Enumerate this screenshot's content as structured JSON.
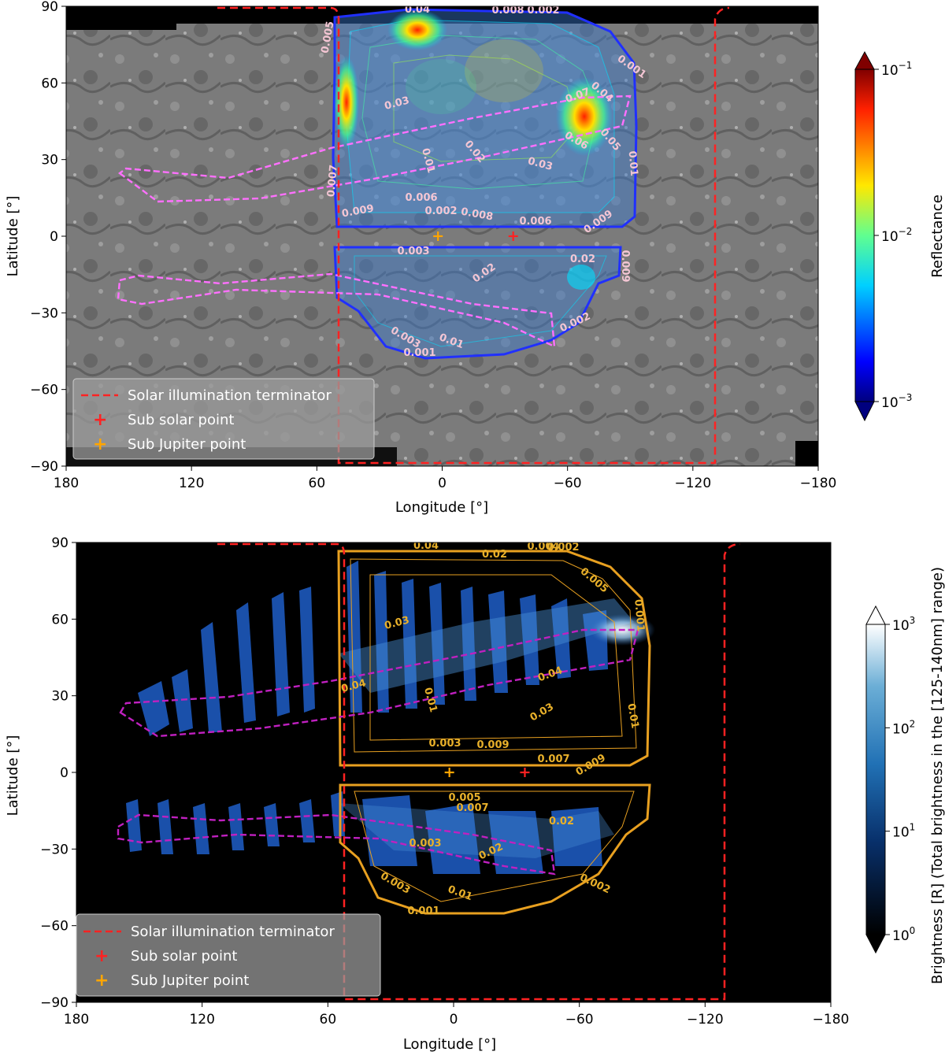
{
  "chart_data": [
    {
      "type": "heatmap",
      "panel": "top",
      "xlabel": "Longitude [°]",
      "ylabel": "Latitude [°]",
      "xlim": [
        180,
        -180
      ],
      "ylim": [
        -90,
        90
      ],
      "xticks": [
        "180",
        "120",
        "60",
        "0",
        "−60",
        "−120",
        "−180"
      ],
      "yticks": [
        "90",
        "60",
        "30",
        "0",
        "−30",
        "−60",
        "−90"
      ],
      "colorbar": {
        "label": "Reflectance",
        "scale": "log",
        "range": [
          0.001,
          0.1
        ],
        "ticks": [
          "10",
          "10",
          "10"
        ],
        "tick_exponents": [
          "−1",
          "−2",
          "−3"
        ],
        "colormap": "jet"
      },
      "contour_labels": [
        "0.04",
        "0.008",
        "0.002",
        "0.005",
        "0.001",
        "0.03",
        "0.07",
        "0.04",
        "0.05",
        "0.06",
        "0.02",
        "0.01",
        "0.03",
        "0.01",
        "0.007",
        "0.009",
        "0.006",
        "0.002",
        "0.008",
        "0.006",
        "0.009",
        "0.02",
        "0.009",
        "0.003",
        "0.02",
        "0.002",
        "0.003",
        "0.01",
        "0.001"
      ],
      "terminator_longitudes": [
        49,
        -110
      ],
      "sub_solar_point": {
        "lon": -34,
        "lat": 0
      },
      "sub_jupiter_point": {
        "lon": 2,
        "lat": 0
      },
      "legend": {
        "placement": "lower-left",
        "entries": [
          "Solar illumination terminator",
          "Sub solar point",
          "Sub Jupiter point"
        ]
      },
      "colors": {
        "terminator": "#ff2222",
        "sub_solar": "#ff2222",
        "sub_jupiter": "#ffa500",
        "track": "#e070e0"
      }
    },
    {
      "type": "heatmap",
      "panel": "bottom",
      "xlabel": "Longitude [°]",
      "ylabel": "Latitude [°]",
      "xlim": [
        180,
        -180
      ],
      "ylim": [
        -90,
        90
      ],
      "xticks": [
        "180",
        "120",
        "60",
        "0",
        "−60",
        "−120",
        "−180"
      ],
      "yticks": [
        "90",
        "60",
        "30",
        "0",
        "−30",
        "−60",
        "−90"
      ],
      "colorbar": {
        "label": "Brightness [R] (Total brightness in the [125-140nm] range)",
        "scale": "log",
        "range": [
          1,
          1000
        ],
        "ticks": [
          "10",
          "10",
          "10",
          "10"
        ],
        "tick_exponents": [
          "3",
          "2",
          "1",
          "0"
        ],
        "colormap": "Blues_r"
      },
      "contour_labels": [
        "0.04",
        "0.02",
        "0.004",
        "0.002",
        "0.005",
        "0.001",
        "0.03",
        "0.04",
        "0.04",
        "0.03",
        "0.01",
        "0.01",
        "0.009",
        "0.007",
        "0.009",
        "0.003",
        "0.005",
        "0.007",
        "0.02",
        "0.003",
        "0.02",
        "0.002",
        "0.003",
        "0.01",
        "0.001"
      ],
      "terminator_longitudes": [
        49,
        -110
      ],
      "sub_solar_point": {
        "lon": -34,
        "lat": 0
      },
      "sub_jupiter_point": {
        "lon": 2,
        "lat": 0
      },
      "legend": {
        "placement": "lower-left",
        "entries": [
          "Solar illumination terminator",
          "Sub solar point",
          "Sub Jupiter point"
        ]
      },
      "colors": {
        "terminator": "#ff2222",
        "sub_solar": "#ff2222",
        "sub_jupiter": "#ffa500",
        "track": "#c020c0",
        "contour": "#e8a020"
      }
    }
  ]
}
